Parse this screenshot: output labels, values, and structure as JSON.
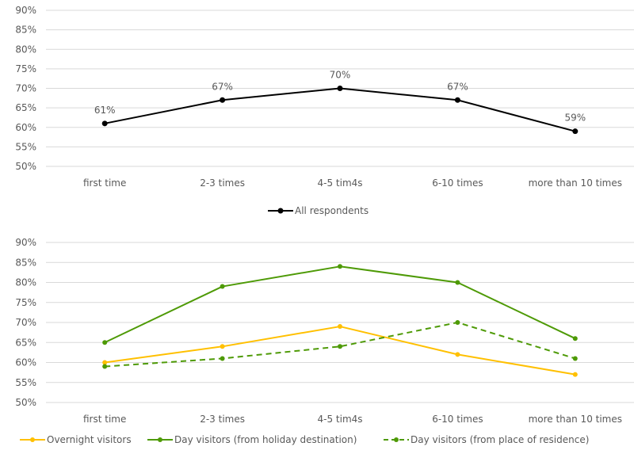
{
  "chart_data": [
    {
      "type": "line",
      "title": "",
      "xlabel": "",
      "ylabel": "",
      "categories": [
        "first time",
        "2-3 times",
        "4-5 tim4s",
        "6-10 times",
        "more than 10 times"
      ],
      "y_ticks": [
        "50%",
        "55%",
        "60%",
        "65%",
        "70%",
        "75%",
        "80%",
        "85%",
        "90%"
      ],
      "ylim": [
        50,
        90
      ],
      "grid": true,
      "legend": "bottom",
      "series": [
        {
          "name": "All respondents",
          "values": [
            61,
            67,
            70,
            67,
            59
          ],
          "labels": [
            "61%",
            "67%",
            "70%",
            "67%",
            "59%"
          ],
          "color": "#000000",
          "dash": false
        }
      ]
    },
    {
      "type": "line",
      "title": "",
      "xlabel": "",
      "ylabel": "",
      "categories": [
        "first time",
        "2-3 times",
        "4-5 tim4s",
        "6-10 times",
        "more than 10 times"
      ],
      "y_ticks": [
        "50%",
        "55%",
        "60%",
        "65%",
        "70%",
        "75%",
        "80%",
        "85%",
        "90%"
      ],
      "ylim": [
        50,
        90
      ],
      "grid": true,
      "legend": "bottom",
      "series": [
        {
          "name": "Overnight visitors",
          "values": [
            60,
            64,
            69,
            62,
            57
          ],
          "color": "#ffc000",
          "dash": false
        },
        {
          "name": "Day visitors (from holiday destination)",
          "values": [
            65,
            79,
            84,
            80,
            66
          ],
          "color": "#4e9a06",
          "dash": false
        },
        {
          "name": "Day visitors (from place of residence)",
          "values": [
            59,
            61,
            64,
            70,
            61
          ],
          "color": "#4e9a06",
          "dash": true
        }
      ]
    }
  ]
}
